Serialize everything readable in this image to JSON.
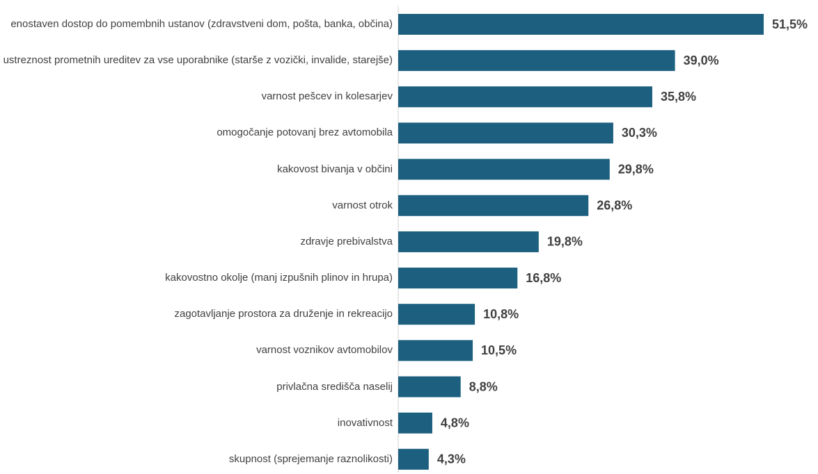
{
  "chart_data": {
    "type": "bar",
    "orientation": "horizontal",
    "color": "#1c5f7f",
    "categories": [
      "enostaven dostop do pomembnih ustanov (zdravstveni dom, pošta, banka, občina)",
      "ustreznost prometnih ureditev za vse uporabnike (starše z vozički, invalide, starejše)",
      "varnost pešcev in kolesarjev",
      "omogočanje potovanj brez avtomobila",
      "kakovost bivanja v občini",
      "varnost otrok",
      "zdravje prebivalstva",
      "kakovostno okolje (manj izpušnih plinov in hrupa)",
      "zagotavljanje prostora za druženje in rekreacijo",
      "varnost voznikov avtomobilov",
      "privlačna središča naselij",
      "inovativnost",
      "skupnost (sprejemanje raznolikosti)"
    ],
    "values": [
      51.5,
      39.0,
      35.8,
      30.3,
      29.8,
      26.8,
      19.8,
      16.8,
      10.8,
      10.5,
      8.8,
      4.8,
      4.3
    ],
    "value_labels": [
      "51,5%",
      "39,0%",
      "35,8%",
      "30,3%",
      "29,8%",
      "26,8%",
      "19,8%",
      "16,8%",
      "10,8%",
      "10,5%",
      "8,8%",
      "4,8%",
      "4,3%"
    ]
  }
}
